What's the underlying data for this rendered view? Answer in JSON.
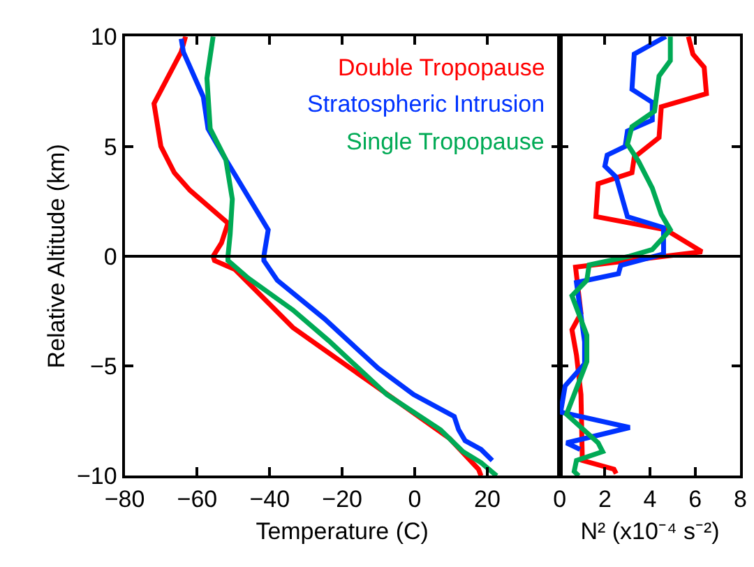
{
  "chart_data": [
    {
      "type": "line",
      "xlabel": "Temperature (C)",
      "ylabel": "Relative Altitude (km)",
      "xlim": [
        -80,
        40
      ],
      "xticks": [
        -80,
        -60,
        -40,
        -20,
        0,
        20
      ],
      "ylim": [
        -10,
        10
      ],
      "yticks": [
        -10,
        -5,
        0,
        5,
        10
      ],
      "legend": "top right",
      "ref_lines": [
        {
          "axis": "y",
          "value": 0,
          "color": "#000000"
        }
      ],
      "series": [
        {
          "name": "Double Tropopause",
          "color": "#ff0000",
          "x": [
            -63.2,
            -64.4,
            -71.9,
            -70,
            -66.3,
            -62,
            -51.5,
            -53.3,
            -55.6,
            -55.2,
            -49.6,
            -33.6,
            -12.6,
            9.6,
            17.6,
            18.3
          ],
          "values": [
            10,
            9.3,
            6.95,
            5.0,
            3.8,
            3.0,
            1.5,
            0.6,
            0,
            -0.2,
            -0.6,
            -3.25,
            -5.7,
            -8.3,
            -9.7,
            -10
          ]
        },
        {
          "name": "Stratospheric Intrusion",
          "color": "#0033ff",
          "x": [
            -64.4,
            -63.8,
            -58.3,
            -57,
            -52.1,
            -40.4,
            -41.6,
            -41.6,
            -37.9,
            -24.9,
            -10.1,
            -0.3,
            10.9,
            12.1,
            13.9,
            18.3,
            21.4
          ],
          "values": [
            9.9,
            9.3,
            7.25,
            5.8,
            4.4,
            1.2,
            0,
            -0.2,
            -1.1,
            -2.85,
            -5.1,
            -6.3,
            -7.3,
            -7.9,
            -8.4,
            -8.8,
            -9.3
          ]
        },
        {
          "name": "Single Tropopause",
          "color": "#00aa55",
          "x": [
            -55.6,
            -57.3,
            -56.4,
            -52.1,
            -50.3,
            -50.9,
            -51.5,
            -51.5,
            -45.9,
            -33.6,
            -23.7,
            -7.7,
            7.1,
            13.3,
            18.3,
            22.6
          ],
          "values": [
            10,
            8.1,
            5.8,
            4.4,
            2.6,
            1.0,
            0,
            -0.2,
            -1.0,
            -2.45,
            -3.85,
            -6.3,
            -7.9,
            -8.9,
            -9.4,
            -10
          ]
        }
      ]
    },
    {
      "type": "line",
      "xlabel": "N² (x10⁻⁴ s⁻²)",
      "xlim": [
        0,
        8
      ],
      "xticks": [
        0,
        2,
        4,
        6,
        8
      ],
      "ylim": [
        -10,
        10
      ],
      "yticks": [
        {
          "value": -10,
          "label": null
        },
        {
          "value": -5,
          "label": null
        },
        {
          "value": 0,
          "label": null
        },
        {
          "value": 5,
          "label": null
        },
        {
          "value": 10,
          "label": null
        }
      ],
      "tick_labels": "x",
      "ref_lines": [
        {
          "axis": "y",
          "value": 0,
          "color": "#000000"
        }
      ],
      "series": [
        {
          "color": "#ff0000",
          "x": [
            5.7,
            5.9,
            6.4,
            6.5,
            4.5,
            4.4,
            3.3,
            3.2,
            1.7,
            1.6,
            4.7,
            6.3,
            0.7,
            0.94,
            0.54,
            0.74,
            0.94,
            1.0,
            2.4,
            2.5
          ],
          "values": [
            10,
            9.2,
            8.6,
            7.4,
            6.8,
            5.4,
            4.5,
            3.8,
            3.3,
            1.8,
            1.2,
            0.2,
            -0.5,
            -2.6,
            -3.35,
            -4.5,
            -6.3,
            -9.3,
            -9.7,
            -9.9
          ]
        },
        {
          "color": "#0033ff",
          "x": [
            4.7,
            3.3,
            3.2,
            4.1,
            4.1,
            3.0,
            2.9,
            2.1,
            2.0,
            2.5,
            3.0,
            4.6,
            4.6,
            2.7,
            2.6,
            0.74,
            1.1,
            1.1,
            0.24,
            0.04,
            3.1,
            0.3,
            0.9
          ],
          "values": [
            10,
            9.2,
            7.6,
            7.0,
            6.2,
            5.7,
            5.0,
            4.6,
            4.1,
            3.6,
            1.8,
            1.3,
            0.1,
            -0.42,
            -0.8,
            -1.2,
            -3.9,
            -4.9,
            -5.9,
            -7.1,
            -7.8,
            -8.5,
            -8.8
          ]
        },
        {
          "color": "#00aa55",
          "x": [
            4.9,
            4.9,
            4.4,
            4.2,
            3.2,
            3.0,
            3.5,
            4.1,
            4.5,
            4.9,
            4.1,
            3.1,
            1.3,
            1.2,
            0.54,
            1.2,
            1.2,
            0.3,
            1.7,
            1.9,
            0.74,
            0.64,
            0.84
          ],
          "values": [
            10,
            8.9,
            8.2,
            6.6,
            5.9,
            5.1,
            4.3,
            3.1,
            1.9,
            1.2,
            0.3,
            0.0,
            -0.4,
            -1.1,
            -1.8,
            -3.6,
            -4.8,
            -7.2,
            -8.5,
            -8.9,
            -9.3,
            -9.8,
            -10
          ]
        }
      ]
    }
  ]
}
